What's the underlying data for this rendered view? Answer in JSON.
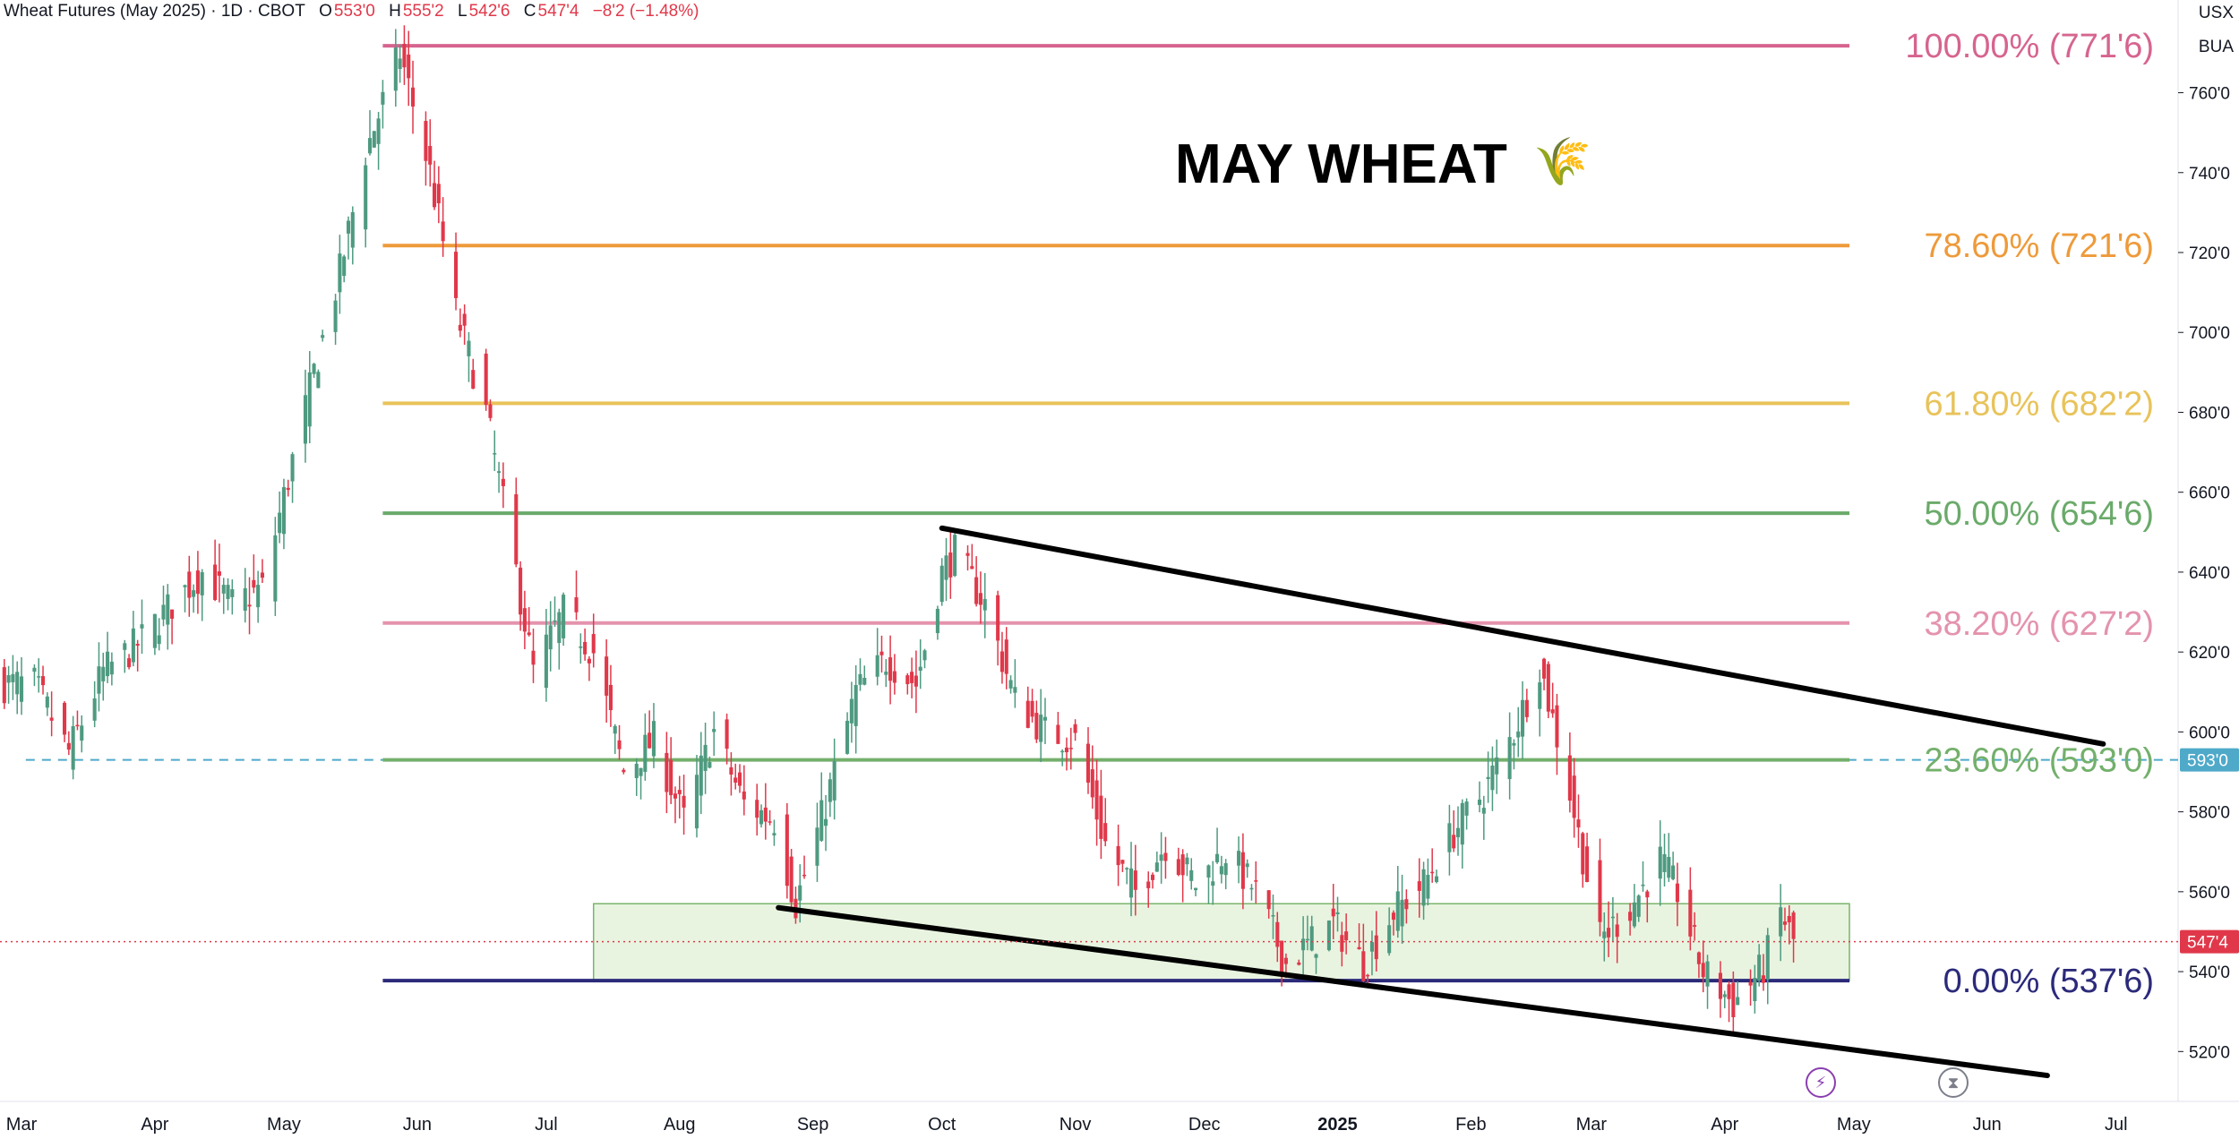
{
  "header": {
    "symbol": "Wheat Futures (May 2025) · 1D · CBOT",
    "o_label": "O",
    "o_value": "553'0",
    "h_label": "H",
    "h_value": "555'2",
    "l_label": "L",
    "l_value": "542'6",
    "c_label": "C",
    "c_value": "547'4",
    "change": "−8'2 (−1.48%)"
  },
  "axis_units": [
    "USX",
    "BUA"
  ],
  "title": "MAY WHEAT",
  "title_icon": "wheat-icon",
  "bottom_icons": [
    "lightning-icon",
    "hourglass-icon"
  ],
  "colors": {
    "up": "#26a69a",
    "up_body": "#4e9a80",
    "down": "#e0384a",
    "fib100": "#d6648f",
    "fib786": "#ee9a3a",
    "fib618": "#e8c35a",
    "fib50": "#6aaa6a",
    "fib382": "#e493ad",
    "fib236": "#74b06c",
    "fib0": "#2b2a7a",
    "support_zone": "#e8f4e0",
    "price_tag": "#e0384a",
    "marker_tag": "#4fa9c9"
  },
  "chart_data": {
    "type": "candlestick",
    "title": "MAY WHEAT",
    "y_range": [
      512,
      772
    ],
    "x_range": [
      "2024-02-25",
      "2025-07-15"
    ],
    "y_ticks": [
      "520'0",
      "540'0",
      "560'0",
      "580'0",
      "600'0",
      "620'0",
      "640'0",
      "660'0",
      "680'0",
      "700'0",
      "720'0",
      "740'0",
      "760'0"
    ],
    "y_tick_values": [
      520,
      540,
      560,
      580,
      600,
      620,
      640,
      660,
      680,
      700,
      720,
      740,
      760
    ],
    "x_ticks": [
      {
        "label": "Mar",
        "date": "2024-03-01"
      },
      {
        "label": "Apr",
        "date": "2024-04-01"
      },
      {
        "label": "May",
        "date": "2024-05-01"
      },
      {
        "label": "Jun",
        "date": "2024-06-01"
      },
      {
        "label": "Jul",
        "date": "2024-07-01"
      },
      {
        "label": "Aug",
        "date": "2024-08-01"
      },
      {
        "label": "Sep",
        "date": "2024-09-01"
      },
      {
        "label": "Oct",
        "date": "2024-10-01"
      },
      {
        "label": "Nov",
        "date": "2024-11-01"
      },
      {
        "label": "Dec",
        "date": "2024-12-01"
      },
      {
        "label": "2025",
        "date": "2025-01-01",
        "bold": true
      },
      {
        "label": "Feb",
        "date": "2025-02-01"
      },
      {
        "label": "Mar",
        "date": "2025-03-01"
      },
      {
        "label": "Apr",
        "date": "2025-04-01"
      },
      {
        "label": "May",
        "date": "2025-05-01"
      },
      {
        "label": "Jun",
        "date": "2025-06-01"
      },
      {
        "label": "Jul",
        "date": "2025-07-01"
      }
    ],
    "price_path_closes": [
      [
        "2024-02-26",
        612
      ],
      [
        "2024-03-04",
        612
      ],
      [
        "2024-03-12",
        595
      ],
      [
        "2024-03-20",
        615
      ],
      [
        "2024-03-28",
        622
      ],
      [
        "2024-04-05",
        632
      ],
      [
        "2024-04-12",
        640
      ],
      [
        "2024-04-19",
        632
      ],
      [
        "2024-04-26",
        636
      ],
      [
        "2024-05-03",
        668
      ],
      [
        "2024-05-08",
        690
      ],
      [
        "2024-05-14",
        715
      ],
      [
        "2024-05-20",
        745
      ],
      [
        "2024-05-28",
        770
      ],
      [
        "2024-06-04",
        740
      ],
      [
        "2024-06-10",
        705
      ],
      [
        "2024-06-17",
        680
      ],
      [
        "2024-06-24",
        640
      ],
      [
        "2024-06-28",
        615
      ],
      [
        "2024-07-05",
        630
      ],
      [
        "2024-07-12",
        620
      ],
      [
        "2024-07-19",
        590
      ],
      [
        "2024-07-26",
        598
      ],
      [
        "2024-08-02",
        578
      ],
      [
        "2024-08-09",
        600
      ],
      [
        "2024-08-16",
        582
      ],
      [
        "2024-08-23",
        578
      ],
      [
        "2024-08-28",
        557
      ],
      [
        "2024-09-04",
        582
      ],
      [
        "2024-09-11",
        610
      ],
      [
        "2024-09-18",
        618
      ],
      [
        "2024-09-25",
        612
      ],
      [
        "2024-10-01",
        640
      ],
      [
        "2024-10-04",
        645
      ],
      [
        "2024-10-11",
        632
      ],
      [
        "2024-10-18",
        608
      ],
      [
        "2024-10-25",
        600
      ],
      [
        "2024-11-01",
        598
      ],
      [
        "2024-11-08",
        572
      ],
      [
        "2024-11-15",
        560
      ],
      [
        "2024-11-22",
        572
      ],
      [
        "2024-11-29",
        562
      ],
      [
        "2024-12-06",
        570
      ],
      [
        "2024-12-13",
        560
      ],
      [
        "2024-12-20",
        542
      ],
      [
        "2024-12-31",
        552
      ],
      [
        "2025-01-07",
        542
      ],
      [
        "2025-01-14",
        555
      ],
      [
        "2025-01-21",
        562
      ],
      [
        "2025-01-28",
        575
      ],
      [
        "2025-02-04",
        585
      ],
      [
        "2025-02-11",
        600
      ],
      [
        "2025-02-17",
        617
      ],
      [
        "2025-02-24",
        585
      ],
      [
        "2025-03-03",
        548
      ],
      [
        "2025-03-10",
        556
      ],
      [
        "2025-03-17",
        568
      ],
      [
        "2025-03-21",
        560
      ],
      [
        "2025-03-27",
        540
      ],
      [
        "2025-04-03",
        532
      ],
      [
        "2025-04-10",
        541
      ],
      [
        "2025-04-14",
        555
      ],
      [
        "2025-04-17",
        547.5
      ]
    ],
    "last_price": {
      "label": "547'4",
      "value": 547.5
    },
    "marker_line": {
      "label": "593'0",
      "value": 593,
      "style": "dashed"
    },
    "fib_retracement": {
      "start_date": "2024-05-24",
      "end_label_date": "2025-06-25",
      "levels": [
        {
          "label": "100.00% (771'6)",
          "value": 771.75,
          "color": "#d6648f"
        },
        {
          "label": "78.60% (721'6)",
          "value": 721.75,
          "color": "#ee9a3a"
        },
        {
          "label": "61.80% (682'2)",
          "value": 682.25,
          "color": "#e8c35a"
        },
        {
          "label": "50.00% (654'6)",
          "value": 654.75,
          "color": "#6aaa6a"
        },
        {
          "label": "38.20% (627'2)",
          "value": 627.25,
          "color": "#e493ad"
        },
        {
          "label": "23.60% (593'0)",
          "value": 593.0,
          "color": "#74b06c"
        },
        {
          "label": "0.00% (537'6)",
          "value": 537.75,
          "color": "#2b2a7a"
        }
      ]
    },
    "support_zone": {
      "from": "2024-07-12",
      "to": "2025-04-30",
      "low": 537.75,
      "high": 557
    },
    "trendlines": [
      {
        "from": [
          "2024-10-01",
          651
        ],
        "to": [
          "2025-06-28",
          597
        ]
      },
      {
        "from": [
          "2024-08-24",
          556
        ],
        "to": [
          "2025-06-15",
          514
        ]
      }
    ]
  }
}
